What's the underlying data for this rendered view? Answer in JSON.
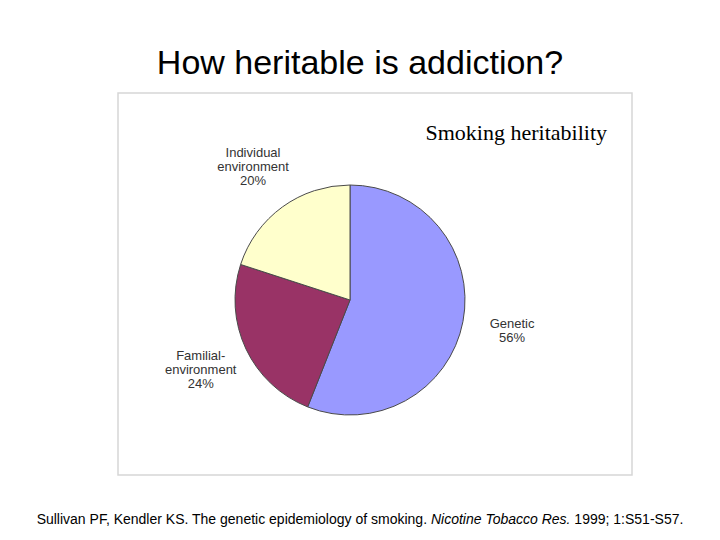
{
  "chart_data": {
    "type": "pie",
    "title": "How heritable is addiction?",
    "subtitle": "Smoking heritability",
    "categories": [
      "Genetic",
      "Familial-environment",
      "Individual environment"
    ],
    "values": [
      56,
      24,
      20
    ],
    "value_labels": [
      "56%",
      "24%",
      "20%"
    ],
    "colors": [
      "#9999ff",
      "#993366",
      "#ffffcc"
    ],
    "source": [
      "Sullivan PF, Kendler KS. The genetic epidemiology of smoking. ",
      "Nicotine Tobacco Res.",
      " 1999; 1:S51-S57."
    ]
  }
}
